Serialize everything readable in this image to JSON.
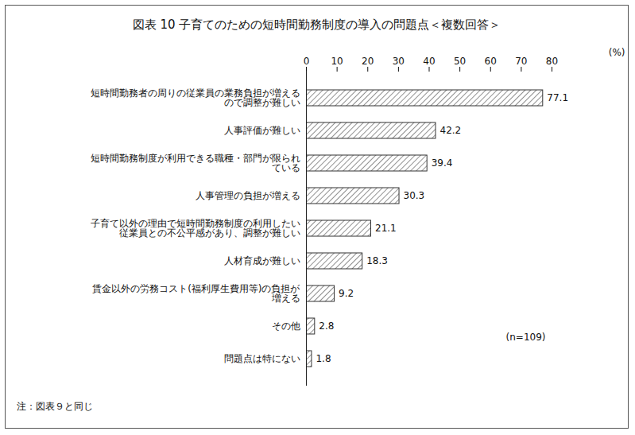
{
  "chart_data": {
    "type": "bar",
    "orientation": "horizontal",
    "title": "図表 10 子育てのための短時間勤務制度の導入の問題点＜複数回答＞",
    "categories": [
      "短時間勤務者の周りの従業員の業務負担が増える\nので調整が難しい",
      "人事評価が難しい",
      "短時間勤務制度が利用できる職種・部門が限られ\nている",
      "人事管理の負担が増える",
      "子育て以外の理由で短時間勤務制度の利用したい\n従業員との不公平感があり、調整が難しい",
      "人材育成が難しい",
      "賃金以外の労務コスト(福利厚生費用等)の負担が\n増える",
      "その他",
      "問題点は特にない"
    ],
    "values": [
      77.1,
      42.2,
      39.4,
      30.3,
      21.1,
      18.3,
      9.2,
      2.8,
      1.8
    ],
    "color": "#333333",
    "xlim": [
      0,
      80
    ],
    "xticks": [
      0,
      10,
      20,
      30,
      40,
      50,
      60,
      70,
      80
    ],
    "xlabel": "(%)",
    "grid": false,
    "data_labels": true,
    "annotations": [
      "(n=109)"
    ],
    "caption": "注：図表９と同じ"
  }
}
